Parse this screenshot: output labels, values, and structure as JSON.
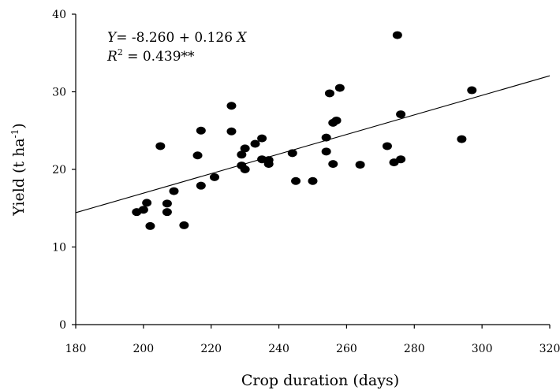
{
  "chart_data": {
    "type": "scatter",
    "title": "",
    "xlabel": "Crop duration (days)",
    "ylabel_parts": {
      "main": "Yield (t ha",
      "sup": "-1",
      "close": ")"
    },
    "xlim": [
      180,
      320
    ],
    "ylim": [
      0,
      40
    ],
    "x_ticks": [
      180,
      200,
      220,
      240,
      260,
      280,
      300,
      320
    ],
    "y_ticks": [
      0,
      10,
      20,
      30,
      40
    ],
    "grid": false,
    "legend": "none",
    "points": [
      {
        "x": 198,
        "y": 14.5
      },
      {
        "x": 200,
        "y": 14.8
      },
      {
        "x": 201,
        "y": 15.7
      },
      {
        "x": 202,
        "y": 12.7
      },
      {
        "x": 205,
        "y": 23.0
      },
      {
        "x": 207,
        "y": 15.6
      },
      {
        "x": 207,
        "y": 14.5
      },
      {
        "x": 209,
        "y": 17.2
      },
      {
        "x": 212,
        "y": 12.8
      },
      {
        "x": 216,
        "y": 21.8
      },
      {
        "x": 217,
        "y": 25.0
      },
      {
        "x": 217,
        "y": 17.9
      },
      {
        "x": 221,
        "y": 19.0
      },
      {
        "x": 226,
        "y": 28.2
      },
      {
        "x": 226,
        "y": 24.9
      },
      {
        "x": 229,
        "y": 21.9
      },
      {
        "x": 229,
        "y": 20.5
      },
      {
        "x": 230,
        "y": 22.7
      },
      {
        "x": 230,
        "y": 20.0
      },
      {
        "x": 233,
        "y": 23.3
      },
      {
        "x": 235,
        "y": 24.0
      },
      {
        "x": 235,
        "y": 21.3
      },
      {
        "x": 237,
        "y": 21.2
      },
      {
        "x": 237,
        "y": 20.7
      },
      {
        "x": 244,
        "y": 22.1
      },
      {
        "x": 245,
        "y": 18.5
      },
      {
        "x": 250,
        "y": 18.5
      },
      {
        "x": 254,
        "y": 24.1
      },
      {
        "x": 254,
        "y": 22.3
      },
      {
        "x": 255,
        "y": 29.8
      },
      {
        "x": 256,
        "y": 26.0
      },
      {
        "x": 256,
        "y": 20.7
      },
      {
        "x": 257,
        "y": 26.3
      },
      {
        "x": 258,
        "y": 30.5
      },
      {
        "x": 264,
        "y": 20.6
      },
      {
        "x": 272,
        "y": 23.0
      },
      {
        "x": 274,
        "y": 20.9
      },
      {
        "x": 275,
        "y": 37.3
      },
      {
        "x": 276,
        "y": 27.1
      },
      {
        "x": 276,
        "y": 21.3
      },
      {
        "x": 294,
        "y": 23.9
      },
      {
        "x": 297,
        "y": 30.2
      }
    ],
    "regression": {
      "intercept": -8.26,
      "slope": 0.126,
      "x_range": [
        180,
        320
      ]
    },
    "equation": {
      "y_var": "Y",
      "y_rest": "= -8.260 + 0.126 ",
      "x_var": "X",
      "r2_var": "R",
      "r2_sup": "2",
      "r2_rest": " = 0.439**"
    },
    "colors": {
      "points": "#000000",
      "line": "#000000",
      "axes": "#000000"
    }
  }
}
